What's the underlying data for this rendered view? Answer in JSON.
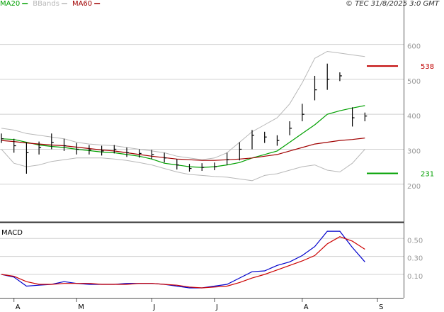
{
  "chart_data": [
    {
      "type": "ohlc",
      "annotation": "© TEC 31/8/2025 3:0 GMT",
      "categories": [
        null,
        "A",
        null,
        null,
        null,
        null,
        "M",
        null,
        null,
        null,
        null,
        null,
        "J",
        null,
        null,
        null,
        null,
        "J",
        null,
        null,
        null,
        null,
        null,
        null,
        "A",
        null,
        null,
        null,
        null,
        null,
        "S"
      ],
      "color": "#000000",
      "high": [
        345,
        330,
        320,
        322,
        345,
        330,
        318,
        312,
        310,
        312,
        305,
        300,
        298,
        290,
        272,
        258,
        260,
        262,
        290,
        320,
        355,
        350,
        340,
        380,
        430,
        510,
        545,
        520,
        420,
        405,
        null
      ],
      "low": [
        318,
        290,
        230,
        285,
        300,
        295,
        285,
        285,
        282,
        288,
        278,
        276,
        272,
        262,
        242,
        236,
        238,
        240,
        255,
        268,
        300,
        318,
        310,
        340,
        380,
        440,
        470,
        495,
        365,
        380,
        null
      ],
      "close": [
        330,
        310,
        290,
        305,
        320,
        310,
        300,
        298,
        295,
        300,
        290,
        288,
        285,
        275,
        255,
        245,
        248,
        250,
        270,
        300,
        340,
        335,
        325,
        360,
        400,
        470,
        500,
        510,
        390,
        395,
        null
      ],
      "series": [
        {
          "name": "MA20",
          "color": "#00a000",
          "values": [
            330,
            328,
            320,
            312,
            308,
            305,
            300,
            296,
            292,
            290,
            285,
            280,
            272,
            260,
            255,
            250,
            248,
            250,
            255,
            262,
            275,
            285,
            295,
            320,
            345,
            370,
            400,
            410,
            418,
            425,
            null
          ]
        },
        {
          "name": "BBands",
          "color": "#b8b8b8",
          "upper": [
            360,
            355,
            345,
            340,
            335,
            330,
            320,
            315,
            312,
            310,
            305,
            300,
            295,
            290,
            280,
            275,
            270,
            275,
            290,
            320,
            350,
            370,
            390,
            430,
            490,
            560,
            580,
            575,
            570,
            565,
            null
          ],
          "lower": [
            300,
            260,
            250,
            255,
            265,
            270,
            275,
            275,
            275,
            272,
            268,
            262,
            255,
            245,
            235,
            228,
            225,
            222,
            220,
            215,
            210,
            225,
            230,
            240,
            250,
            255,
            240,
            235,
            260,
            300,
            null
          ]
        },
        {
          "name": "MA60",
          "color": "#a00000",
          "values": [
            325,
            322,
            318,
            315,
            312,
            310,
            306,
            302,
            298,
            295,
            290,
            285,
            280,
            276,
            272,
            270,
            268,
            268,
            270,
            272,
            275,
            280,
            285,
            295,
            305,
            315,
            320,
            325,
            328,
            332,
            null
          ]
        }
      ],
      "levels": [
        {
          "value": 538,
          "color": "#c00000"
        },
        {
          "value": 231,
          "color": "#00a000"
        }
      ],
      "ylim": [
        94,
        727
      ],
      "yticks": [
        200,
        300,
        400,
        500,
        600
      ],
      "grid": true
    },
    {
      "type": "line",
      "title": "MACD",
      "ylim": [
        -0.16,
        0.66
      ],
      "yticks": [
        {
          "value": 0.1,
          "label": "0.10"
        },
        {
          "value": 0.3,
          "label": "0.30"
        },
        {
          "value": 0.5,
          "label": "0.50"
        }
      ],
      "grid": true,
      "series": [
        {
          "color": "#0000cc",
          "values": [
            0.1,
            0.07,
            -0.03,
            -0.02,
            -0.01,
            0.02,
            0.0,
            -0.01,
            -0.01,
            -0.01,
            0.0,
            0.0,
            0.0,
            -0.01,
            -0.03,
            -0.05,
            -0.05,
            -0.03,
            -0.01,
            0.06,
            0.13,
            0.14,
            0.2,
            0.24,
            0.31,
            0.41,
            0.58,
            0.58,
            0.4,
            0.24,
            null
          ]
        },
        {
          "color": "#cc0000",
          "values": [
            0.1,
            0.08,
            0.02,
            -0.01,
            -0.01,
            0.0,
            0.0,
            0.0,
            -0.01,
            -0.01,
            -0.01,
            0.0,
            0.0,
            -0.01,
            -0.02,
            -0.04,
            -0.05,
            -0.04,
            -0.03,
            0.01,
            0.06,
            0.1,
            0.15,
            0.2,
            0.25,
            0.31,
            0.44,
            0.52,
            0.47,
            0.38,
            null
          ]
        }
      ]
    }
  ]
}
